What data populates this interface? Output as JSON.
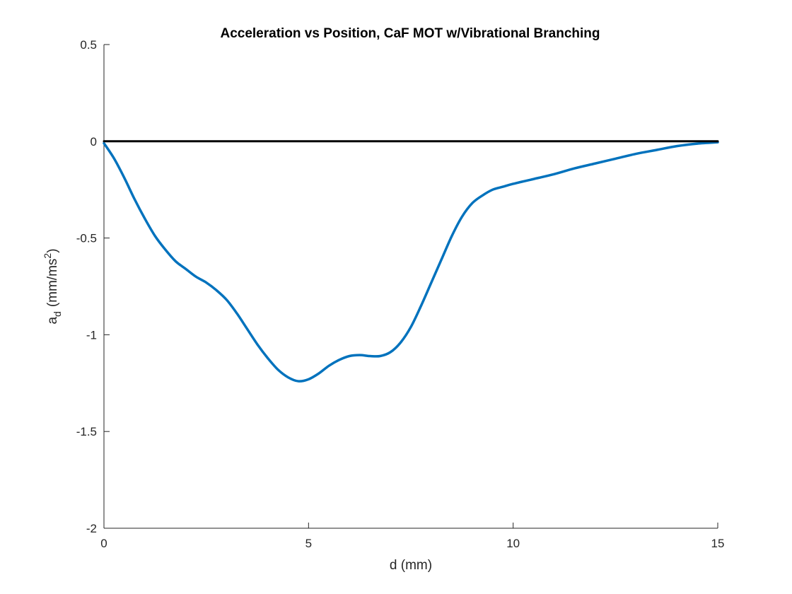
{
  "chart_data": {
    "type": "line",
    "title": "Acceleration vs Position, CaF MOT w/Vibrational Branching",
    "xlabel": "d (mm)",
    "ylabel": {
      "main": "a",
      "subscript": "d",
      "unit_prefix": "(mm/ms",
      "unit_superscript": "2",
      "unit_suffix": ")"
    },
    "xlim": [
      0,
      15
    ],
    "ylim": [
      -2,
      0.5
    ],
    "x_ticks": [
      0,
      5,
      10,
      15
    ],
    "x_tick_labels": [
      "0",
      "5",
      "10",
      "15"
    ],
    "y_ticks": [
      -2,
      -1.5,
      -1,
      -0.5,
      0,
      0.5
    ],
    "y_tick_labels": [
      "-2",
      "-1.5",
      "-1",
      "-0.5",
      "0",
      "0.5"
    ],
    "grid": false,
    "legend": "none",
    "series": [
      {
        "color": "#0072bd",
        "x": [
          0,
          0.25,
          0.5,
          0.75,
          1.0,
          1.25,
          1.5,
          1.75,
          2.0,
          2.25,
          2.5,
          2.75,
          3.0,
          3.25,
          3.5,
          3.75,
          4.0,
          4.25,
          4.5,
          4.75,
          5.0,
          5.25,
          5.5,
          5.75,
          6.0,
          6.25,
          6.5,
          6.75,
          7.0,
          7.25,
          7.5,
          7.75,
          8.0,
          8.25,
          8.5,
          8.75,
          9.0,
          9.25,
          9.5,
          9.75,
          10.0,
          10.5,
          11.0,
          11.5,
          12.0,
          12.5,
          13.0,
          13.5,
          14.0,
          14.5,
          15.0
        ],
        "y": [
          -0.01,
          -0.09,
          -0.19,
          -0.3,
          -0.4,
          -0.49,
          -0.56,
          -0.62,
          -0.66,
          -0.7,
          -0.73,
          -0.77,
          -0.82,
          -0.89,
          -0.97,
          -1.05,
          -1.12,
          -1.18,
          -1.22,
          -1.24,
          -1.23,
          -1.2,
          -1.16,
          -1.13,
          -1.11,
          -1.105,
          -1.11,
          -1.11,
          -1.09,
          -1.04,
          -0.96,
          -0.85,
          -0.73,
          -0.61,
          -0.49,
          -0.39,
          -0.32,
          -0.28,
          -0.25,
          -0.235,
          -0.22,
          -0.195,
          -0.17,
          -0.14,
          -0.115,
          -0.09,
          -0.065,
          -0.045,
          -0.025,
          -0.012,
          -0.005
        ]
      },
      {
        "color": "#000000",
        "x": [
          0,
          15
        ],
        "y": [
          0,
          0
        ]
      }
    ]
  }
}
